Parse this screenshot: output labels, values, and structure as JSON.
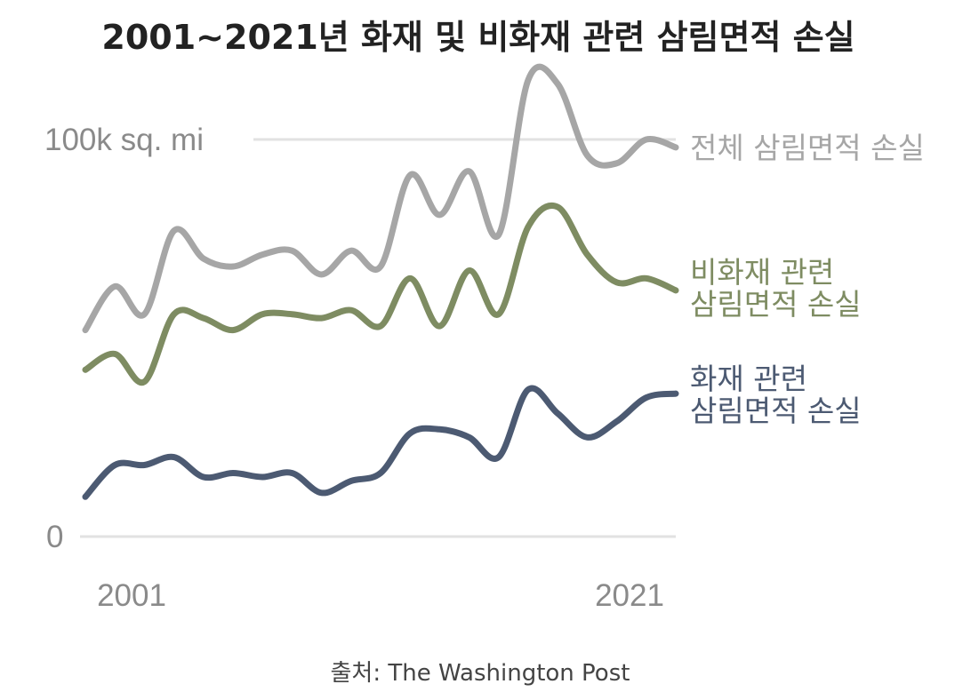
{
  "chart_data": {
    "type": "line",
    "title": "2001~2021년 화재 및 비화재 관련 삼림면적 손실",
    "source": "출처: The Washington Post",
    "x": [
      2001,
      2002,
      2003,
      2004,
      2005,
      2006,
      2007,
      2008,
      2009,
      2010,
      2011,
      2012,
      2013,
      2014,
      2015,
      2016,
      2017,
      2018,
      2019,
      2020,
      2021
    ],
    "ylim": [
      0,
      115
    ],
    "y_tick_labels": [
      "0",
      "100k sq. mi"
    ],
    "y_ticks": [
      0,
      100
    ],
    "x_tick_labels": [
      "2001",
      "2021"
    ],
    "series": [
      {
        "name": "전체 삼림면적 손실",
        "label_lines": [
          "전체 삼림면적 손실"
        ],
        "color": "#a6a6a6",
        "values": [
          52,
          63,
          56,
          77,
          70,
          68,
          71,
          72,
          66,
          72,
          68,
          91,
          81,
          92,
          76,
          115,
          114,
          96,
          94,
          100,
          98
        ]
      },
      {
        "name": "비화재 관련 삼림면적 손실",
        "label_lines": [
          "비화재 관련",
          "삼림면적 손실"
        ],
        "color": "#7e8c62",
        "values": [
          42,
          46,
          39,
          56,
          55,
          52,
          56,
          56,
          55,
          57,
          53,
          65,
          53,
          67,
          56,
          78,
          83,
          71,
          64,
          65,
          62
        ]
      },
      {
        "name": "화재 관련 삼림면적 손실",
        "label_lines": [
          "화재 관련",
          "삼림면적 손실"
        ],
        "color": "#4c5a72",
        "values": [
          10,
          18,
          18,
          20,
          15,
          16,
          15,
          16,
          11,
          14,
          16,
          26,
          27,
          25,
          20,
          37,
          31,
          25,
          29,
          35,
          36
        ]
      }
    ]
  }
}
